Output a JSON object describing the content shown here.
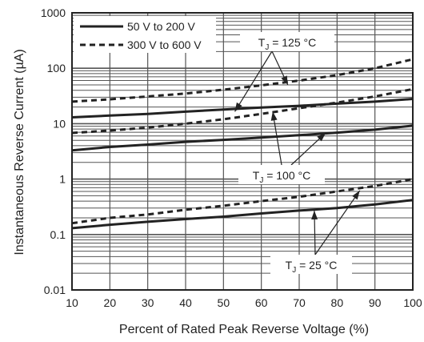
{
  "chart_data": {
    "type": "line",
    "x_axis": {
      "label": "Percent of Rated Peak Reverse Voltage (%)",
      "range": [
        10,
        100
      ],
      "ticks": [
        "10",
        "20",
        "30",
        "40",
        "50",
        "60",
        "70",
        "80",
        "90",
        "100"
      ]
    },
    "y_axis": {
      "label": "Instantaneous Reverse Current (µA)",
      "scale": "log",
      "range": [
        0.01,
        1000
      ],
      "ticks": [
        "0.01",
        "0.1",
        "1",
        "10",
        "100",
        "1000"
      ]
    },
    "grid": true,
    "legend": {
      "position": "top-left",
      "entries": [
        {
          "label": "50 V to 200 V",
          "style": "solid"
        },
        {
          "label": "300 V to 600 V",
          "style": "dashed"
        }
      ]
    },
    "series": [
      {
        "name": "50 V to 200 V",
        "group": "125",
        "style": "solid",
        "x": [
          10,
          20,
          30,
          40,
          50,
          60,
          70,
          80,
          90,
          100
        ],
        "y": [
          13,
          14,
          15,
          16.5,
          18,
          19.5,
          21,
          23,
          25,
          28
        ]
      },
      {
        "name": "300 V to 600 V",
        "group": "125",
        "style": "dashed",
        "x": [
          10,
          20,
          30,
          40,
          50,
          60,
          70,
          80,
          90,
          100
        ],
        "y": [
          25,
          27.5,
          31,
          35,
          41,
          49,
          60,
          75,
          100,
          145
        ]
      },
      {
        "name": "50 V to 200 V",
        "group": "100",
        "style": "solid",
        "x": [
          10,
          20,
          30,
          40,
          50,
          60,
          70,
          80,
          90,
          100
        ],
        "y": [
          3.3,
          3.8,
          4.2,
          4.7,
          5.1,
          5.6,
          6.2,
          6.9,
          7.8,
          9.2
        ]
      },
      {
        "name": "300 V to 600 V",
        "group": "100",
        "style": "dashed",
        "x": [
          10,
          20,
          30,
          40,
          50,
          60,
          70,
          80,
          90,
          100
        ],
        "y": [
          6.8,
          7.5,
          8.5,
          10,
          12,
          15,
          19,
          24,
          31,
          42
        ]
      },
      {
        "name": "50 V to 200 V",
        "group": "25",
        "style": "solid",
        "x": [
          10,
          20,
          30,
          40,
          50,
          60,
          70,
          80,
          90,
          100
        ],
        "y": [
          0.13,
          0.15,
          0.17,
          0.19,
          0.21,
          0.24,
          0.27,
          0.3,
          0.35,
          0.42
        ]
      },
      {
        "name": "300 V to 600 V",
        "group": "25",
        "style": "dashed",
        "x": [
          10,
          20,
          30,
          40,
          50,
          60,
          70,
          80,
          90,
          100
        ],
        "y": [
          0.16,
          0.2,
          0.23,
          0.28,
          0.33,
          0.4,
          0.48,
          0.6,
          0.75,
          1.0
        ]
      }
    ],
    "annotations": [
      {
        "label": "T",
        "sub": "J",
        "suffix": " = 125 °C",
        "points_to": "125",
        "targets": [
          [
            67,
            50
          ],
          [
            53,
            16.5
          ]
        ]
      },
      {
        "label": "T",
        "sub": "J",
        "suffix": " = 100 °C",
        "points_to": "100",
        "targets": [
          [
            63,
            16.5
          ],
          [
            77,
            6.8
          ]
        ]
      },
      {
        "label": "T",
        "sub": "J",
        "suffix": " = 25 °C",
        "points_to": "25",
        "targets": [
          [
            74,
            0.27
          ],
          [
            86,
            0.62
          ]
        ]
      }
    ]
  }
}
